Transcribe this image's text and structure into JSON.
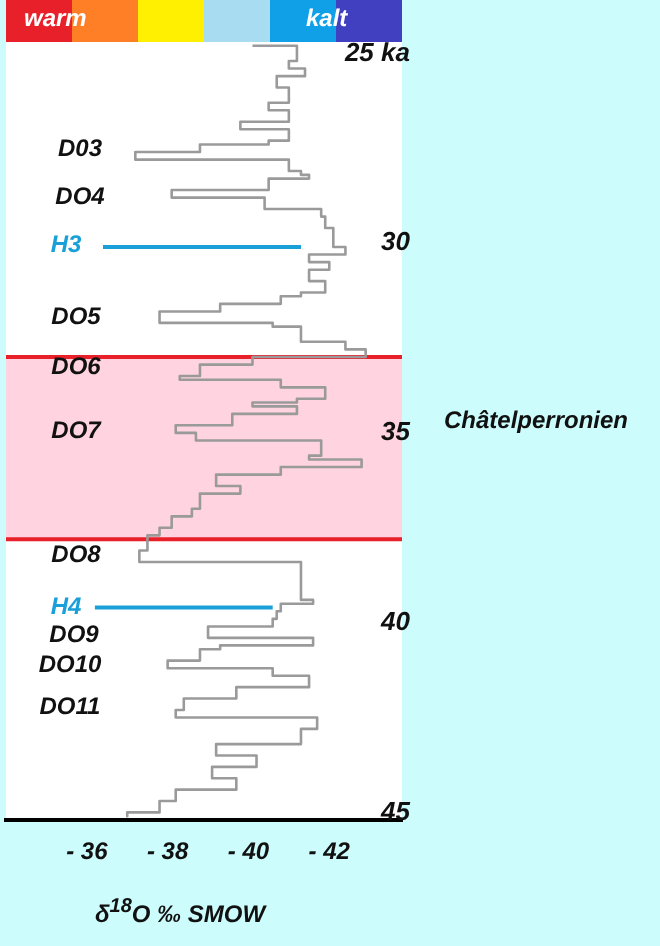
{
  "chart_data": {
    "type": "line",
    "xlabel": "δ$^{18}$O ‰ SMOW",
    "xlim": [
      -34.0,
      -43.8
    ],
    "xticks": [
      {
        "value": -36,
        "label": "- 36"
      },
      {
        "value": -38,
        "label": "- 38"
      },
      {
        "value": -40,
        "label": "- 40"
      },
      {
        "value": -42,
        "label": "- 42"
      }
    ],
    "ylim": [
      45.2,
      24.7
    ],
    "yticks": [
      {
        "value": 25,
        "label": "25 ka"
      },
      30,
      35,
      40,
      45
    ],
    "grid": false,
    "marker": "none",
    "line_style": "solid",
    "bands": [
      {
        "axis": "y",
        "from": 33.0,
        "to": 37.8,
        "color": "#ffd3e0"
      }
    ],
    "ref_lines": [
      {
        "axis": "y",
        "value": 33.0,
        "color": "#e8202a"
      },
      {
        "axis": "y",
        "value": 37.8,
        "color": "#e8202a"
      }
    ],
    "series": [
      {
        "color": "#9a9a9a",
        "x": [
          -40.1,
          -41.2,
          -41.2,
          -41.0,
          -41.0,
          -41.4,
          -41.4,
          -40.7,
          -40.7,
          -41.0,
          -41.0,
          -40.5,
          -40.5,
          -41.0,
          -41.0,
          -39.8,
          -39.8,
          -41.0,
          -41.0,
          -40.5,
          -40.5,
          -38.8,
          -38.8,
          -37.2,
          -37.2,
          -41.0,
          -41.0,
          -41.3,
          -41.3,
          -41.5,
          -41.5,
          -40.5,
          -40.5,
          -38.1,
          -38.1,
          -40.4,
          -40.4,
          -41.8,
          -41.8,
          -41.9,
          -41.9,
          -42.1,
          -42.1,
          -42.4,
          -42.4,
          -41.5,
          -41.5,
          -42.0,
          -42.0,
          -41.5,
          -41.5,
          -41.9,
          -41.9,
          -41.3,
          -41.3,
          -40.8,
          -40.8,
          -39.3,
          -39.3,
          -37.8,
          -37.8,
          -40.6,
          -40.6,
          -41.3,
          -41.3,
          -42.4,
          -42.4,
          -42.9,
          -42.9,
          -40.1,
          -40.1,
          -38.8,
          -38.8,
          -38.3,
          -38.3,
          -40.8,
          -40.8,
          -41.9,
          -41.9,
          -41.2,
          -41.2,
          -40.1,
          -40.1,
          -41.2,
          -41.2,
          -39.6,
          -39.6,
          -38.2,
          -38.2,
          -38.7,
          -38.7,
          -41.8,
          -41.8,
          -41.5,
          -41.5,
          -42.8,
          -42.8,
          -40.8,
          -40.8,
          -39.2,
          -39.2,
          -39.8,
          -39.8,
          -38.8,
          -38.8,
          -38.6,
          -38.6,
          -38.1,
          -38.1,
          -37.8,
          -37.8,
          -37.5,
          -37.5,
          -37.3,
          -37.3,
          -41.3,
          -41.3,
          -41.6,
          -41.6,
          -40.8,
          -40.8,
          -40.7,
          -40.7,
          -40.6,
          -40.6,
          -39.0,
          -39.0,
          -41.6,
          -41.6,
          -39.3,
          -39.3,
          -38.8,
          -38.8,
          -38.0,
          -38.0,
          -40.6,
          -40.6,
          -41.5,
          -41.5,
          -39.7,
          -39.7,
          -38.4,
          -38.4,
          -38.2,
          -38.2,
          -41.7,
          -41.7,
          -41.3,
          -41.3,
          -39.2,
          -39.2,
          -40.2,
          -40.2,
          -39.1,
          -39.1,
          -39.7,
          -39.7,
          -38.2,
          -38.2,
          -37.8,
          -37.8,
          -37.0,
          -37.0
        ],
        "values": [
          24.8,
          24.8,
          25.2,
          25.2,
          25.4,
          25.4,
          25.6,
          25.6,
          25.9,
          25.9,
          26.3,
          26.3,
          26.5,
          26.5,
          26.8,
          26.8,
          27.0,
          27.0,
          27.3,
          27.3,
          27.4,
          27.4,
          27.6,
          27.6,
          27.8,
          27.8,
          28.1,
          28.1,
          28.2,
          28.2,
          28.3,
          28.3,
          28.6,
          28.6,
          28.8,
          28.8,
          29.1,
          29.1,
          29.3,
          29.3,
          29.6,
          29.6,
          30.1,
          30.1,
          30.3,
          30.3,
          30.5,
          30.5,
          30.7,
          30.7,
          31.0,
          31.0,
          31.3,
          31.3,
          31.4,
          31.4,
          31.6,
          31.6,
          31.8,
          31.8,
          32.1,
          32.1,
          32.2,
          32.2,
          32.6,
          32.6,
          32.8,
          32.8,
          33.0,
          33.0,
          33.2,
          33.2,
          33.5,
          33.5,
          33.6,
          33.6,
          33.8,
          33.8,
          34.1,
          34.1,
          34.2,
          34.2,
          34.3,
          34.3,
          34.5,
          34.5,
          34.8,
          34.8,
          35.0,
          35.0,
          35.2,
          35.2,
          35.6,
          35.6,
          35.7,
          35.7,
          35.9,
          35.9,
          36.1,
          36.1,
          36.4,
          36.4,
          36.6,
          36.6,
          37.0,
          37.0,
          37.2,
          37.2,
          37.5,
          37.5,
          37.7,
          37.7,
          38.1,
          38.1,
          38.4,
          38.4,
          39.4,
          39.4,
          39.5,
          39.5,
          39.7,
          39.7,
          39.9,
          39.9,
          40.1,
          40.1,
          40.4,
          40.4,
          40.6,
          40.6,
          40.7,
          40.7,
          41.0,
          41.0,
          41.2,
          41.2,
          41.4,
          41.4,
          41.7,
          41.7,
          42.0,
          42.0,
          42.3,
          42.3,
          42.5,
          42.5,
          42.8,
          42.8,
          43.2,
          43.2,
          43.5,
          43.5,
          43.8,
          43.8,
          44.1,
          44.1,
          44.4,
          44.4,
          44.7,
          44.7,
          45.0,
          45.0,
          45.1
        ]
      },
      {
        "color": "#1aa0d8",
        "x": [
          -36.4,
          -41.3
        ],
        "values": [
          30.1,
          30.1
        ]
      },
      {
        "color": "#1aa0d8",
        "x": [
          -36.2,
          -40.6
        ],
        "values": [
          39.6,
          39.6
        ]
      }
    ],
    "annotations": [
      "warm",
      "kalt",
      "Châtelperronien",
      "D03",
      "DO4",
      "H3",
      "DO5",
      "DO6",
      "DO7",
      "DO8",
      "H4",
      "DO9",
      "DO10",
      "DO11"
    ]
  }
}
